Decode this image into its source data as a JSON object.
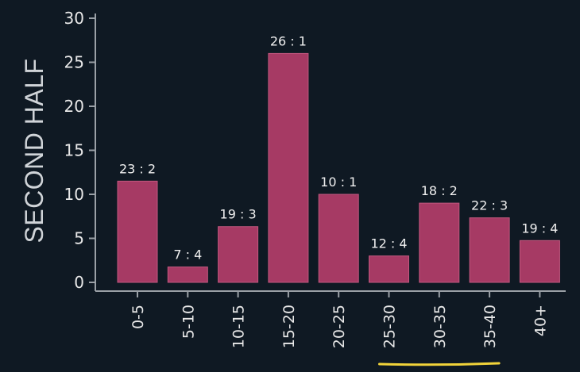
{
  "chart_data": {
    "type": "bar",
    "title": "",
    "xlabel": "",
    "ylabel": "SECOND HALF",
    "ylim": [
      0,
      30
    ],
    "yticks": [
      0,
      5,
      10,
      15,
      20,
      25,
      30
    ],
    "grid": false,
    "categories": [
      "0-5",
      "5-10",
      "10-15",
      "15-20",
      "20-25",
      "25-30",
      "30-35",
      "35-40",
      "40+"
    ],
    "values": [
      11.5,
      1.75,
      6.33,
      26,
      10,
      3,
      9,
      7.33,
      4.75
    ],
    "data_labels": [
      "23 : 2",
      "7 : 4",
      "19 : 3",
      "26 : 1",
      "10 : 1",
      "12 : 4",
      "18 : 2",
      "22 : 3",
      "19 : 4"
    ],
    "highlighted_categories": [
      "25-30",
      "30-35",
      "35-40"
    ]
  },
  "colors": {
    "background": "#0f1923",
    "bar": "#a63a64",
    "bar_edge": "#c2587f",
    "axis": "#9aa0a6",
    "highlight": "#f2d43a"
  }
}
